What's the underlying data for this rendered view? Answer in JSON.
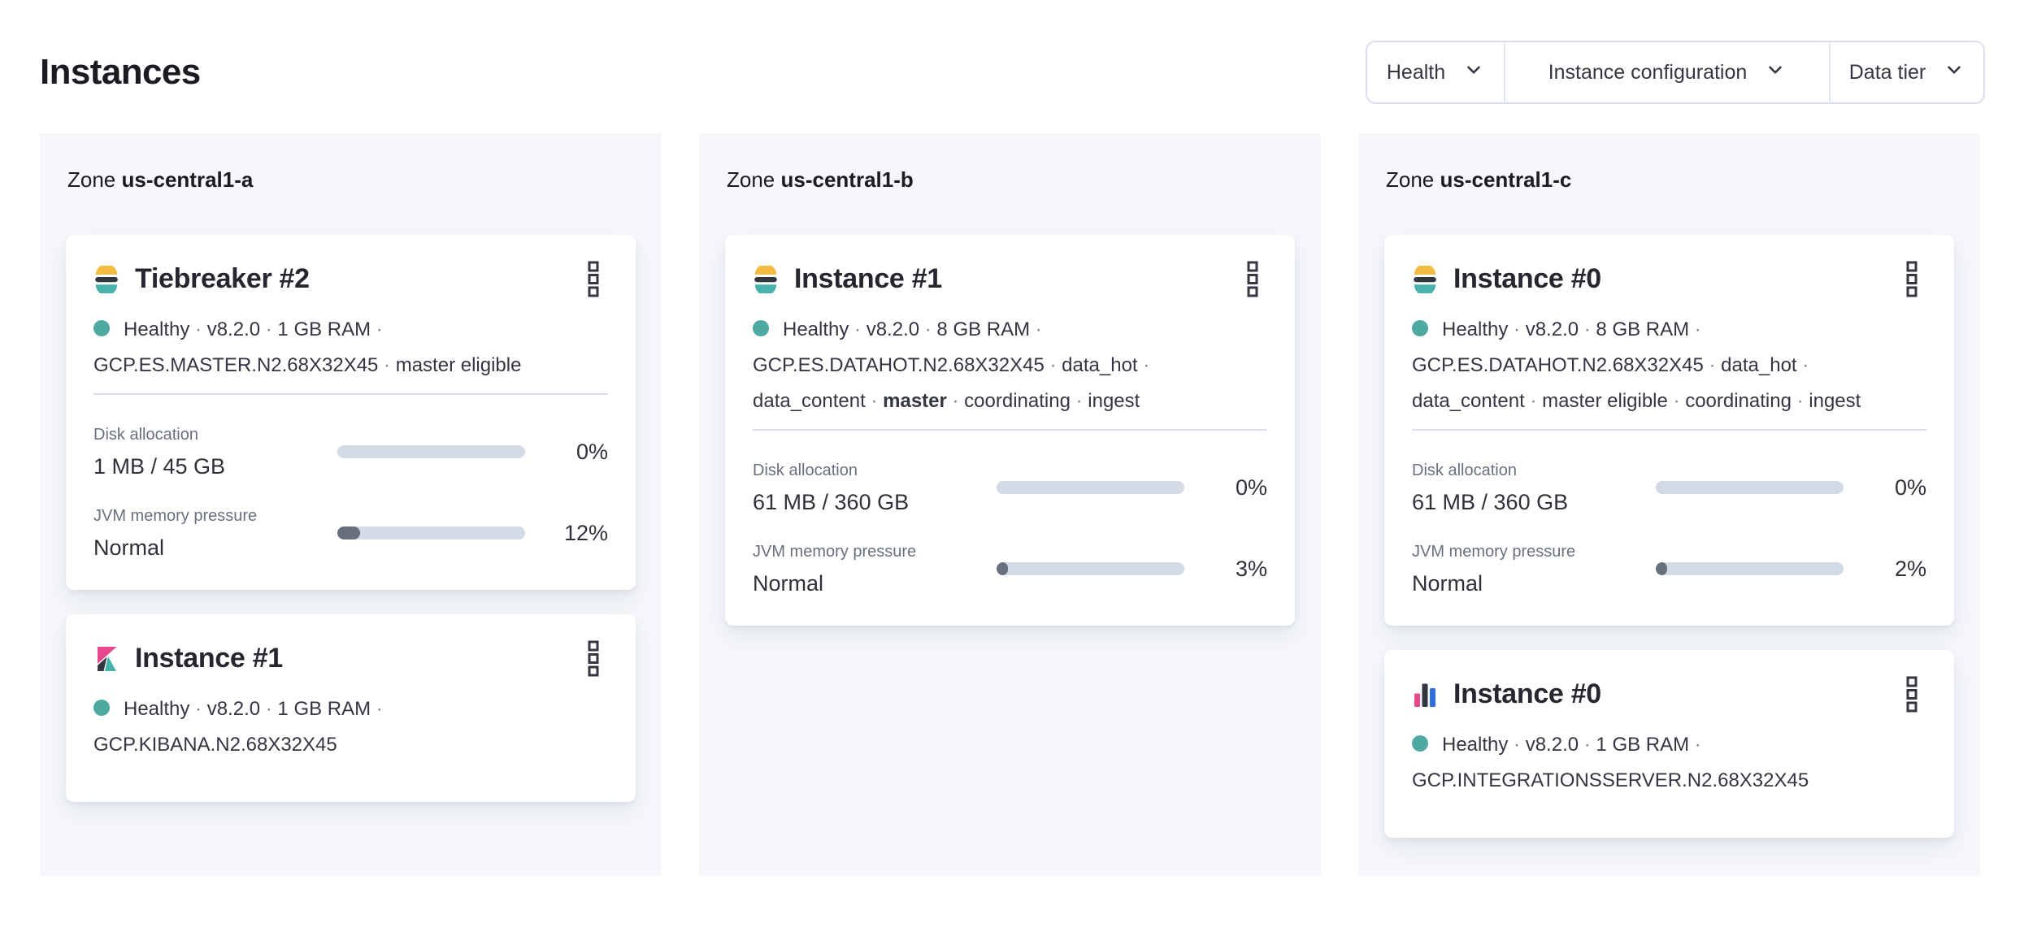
{
  "page": {
    "title": "Instances"
  },
  "filters": {
    "buttons": [
      {
        "label": "Health",
        "icon": "chevron-down-icon"
      },
      {
        "label": "Instance configuration",
        "icon": "chevron-down-icon"
      },
      {
        "label": "Data tier",
        "icon": "chevron-down-icon"
      }
    ]
  },
  "colors": {
    "heading": "#1A1C21",
    "text": "#343741",
    "text_subdued": "#69707D",
    "border": "#D9DEE8",
    "panel_bg": "#F5F7FA",
    "health_dot": "#4EA9A1",
    "bar_track": "#D3DAE6",
    "bar_fill": "#69707D",
    "es_yellow": "#F2BC40",
    "es_teal": "#48B3AB",
    "brand_dark": "#33373F",
    "kibana_pink": "#E8478B",
    "integrations_blue": "#2F6DE0"
  },
  "zones": [
    {
      "label": "Zone",
      "name": "us-central1-a",
      "cards": [
        {
          "icon": "elasticsearch-logo",
          "title": "Tiebreaker #2",
          "health": "Healthy",
          "meta_lines": [
            "Healthy · v8.2.0 · 1 GB RAM ·",
            "GCP.ES.MASTER.N2.68X32X45 · master eligible"
          ],
          "metrics": [
            {
              "label": "Disk allocation",
              "value": "1 MB / 45 GB",
              "percent": "0%",
              "fill": 0
            },
            {
              "label": "JVM memory pressure",
              "value": "Normal",
              "percent": "12%",
              "fill": 12
            }
          ]
        },
        {
          "icon": "kibana-logo",
          "title": "Instance #1",
          "health": "Healthy",
          "meta_lines": [
            "Healthy · v8.2.0 · 1 GB RAM ·",
            "GCP.KIBANA.N2.68X32X45"
          ],
          "metrics": []
        }
      ]
    },
    {
      "label": "Zone",
      "name": "us-central1-b",
      "cards": [
        {
          "icon": "elasticsearch-logo",
          "title": "Instance #1",
          "health": "Healthy",
          "meta_lines": [
            "Healthy · v8.2.0 · 8 GB RAM ·",
            "GCP.ES.DATAHOT.N2.68X32X45 · data_hot ·",
            "data_content · **master** · coordinating · ingest"
          ],
          "metrics": [
            {
              "label": "Disk allocation",
              "value": "61 MB / 360 GB",
              "percent": "0%",
              "fill": 0
            },
            {
              "label": "JVM memory pressure",
              "value": "Normal",
              "percent": "3%",
              "fill": 3
            }
          ]
        }
      ]
    },
    {
      "label": "Zone",
      "name": "us-central1-c",
      "cards": [
        {
          "icon": "elasticsearch-logo",
          "title": "Instance #0",
          "health": "Healthy",
          "meta_lines": [
            "Healthy · v8.2.0 · 8 GB RAM ·",
            "GCP.ES.DATAHOT.N2.68X32X45 · data_hot ·",
            "data_content · master eligible · coordinating · ingest"
          ],
          "metrics": [
            {
              "label": "Disk allocation",
              "value": "61 MB / 360 GB",
              "percent": "0%",
              "fill": 0
            },
            {
              "label": "JVM memory pressure",
              "value": "Normal",
              "percent": "2%",
              "fill": 2
            }
          ]
        },
        {
          "icon": "integrations-server-logo",
          "title": "Instance #0",
          "health": "Healthy",
          "meta_lines": [
            "Healthy · v8.2.0 · 1 GB RAM ·",
            "GCP.INTEGRATIONSSERVER.N2.68X32X45"
          ],
          "metrics": []
        }
      ]
    }
  ]
}
